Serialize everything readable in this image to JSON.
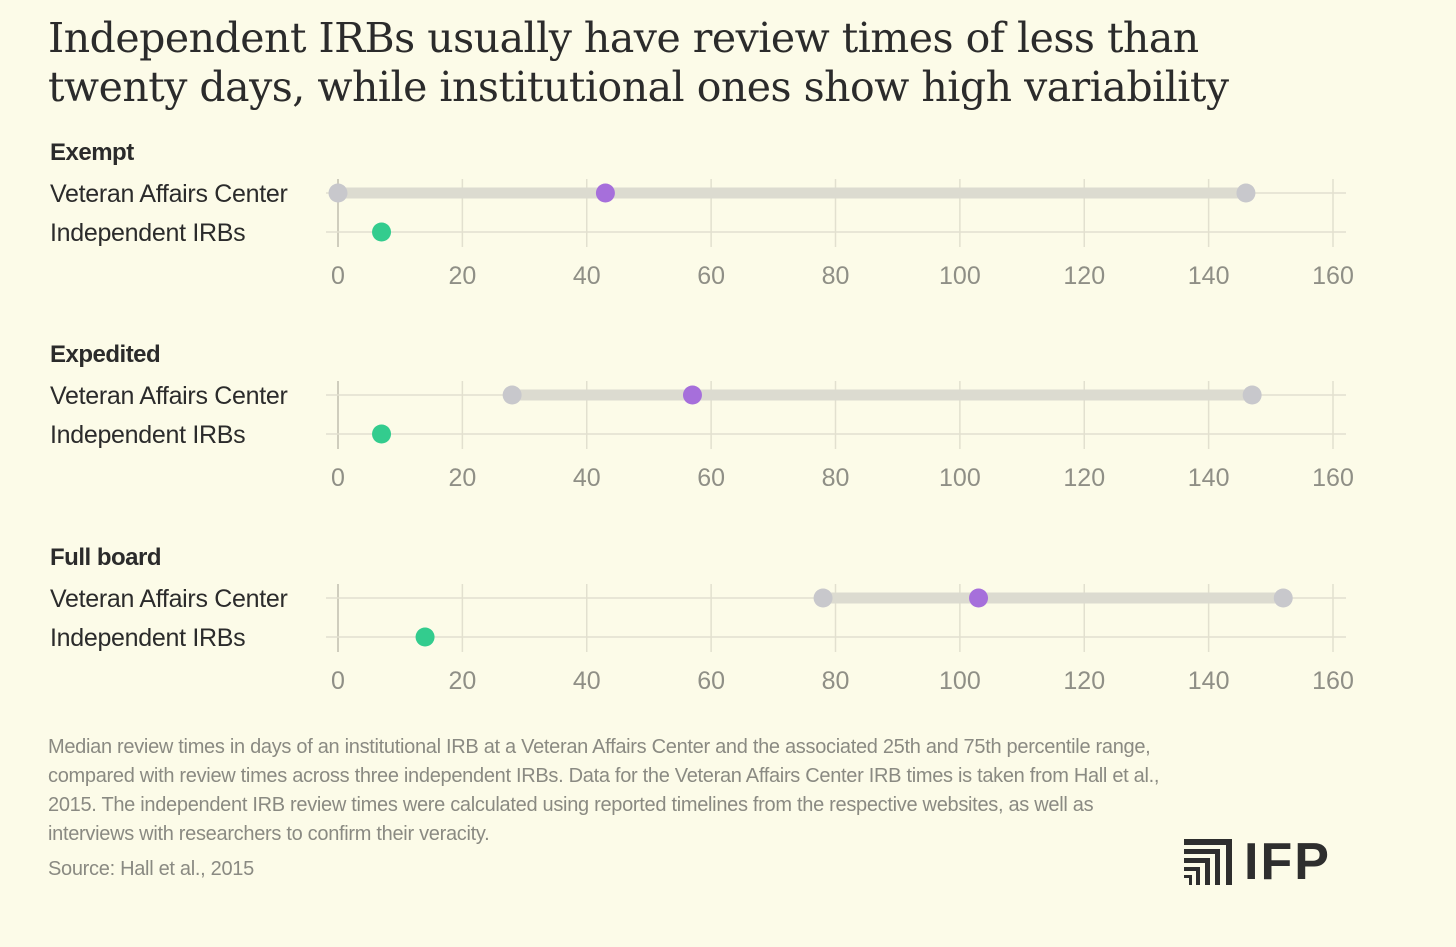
{
  "title": "Independent IRBs usually have review times of less than twenty days, while institutional ones show high variability",
  "caption": "Median review times in days of an institutional IRB at a Veteran Affairs Center and the associated 25th and 75th percentile range, compared with review times across three independent IRBs. Data for the Veteran Affairs Center IRB times is taken from Hall et al., 2015. The independent IRB review times were calculated using reported timelines from the respective websites, as well as interviews with researchers to confirm their veracity.",
  "source": "Source: Hall et al., 2015",
  "logo": {
    "text": "IFP",
    "icon": "ifp-stripes-icon"
  },
  "colors": {
    "background": "#fcfbe8",
    "median": "#a66fdb",
    "range_end": "#c8c8cc",
    "range_bar": "#dcdbd0",
    "independent": "#33cc8e",
    "grid": "#e2e0cf",
    "tick_text": "#8f8f86",
    "label_text": "#2b2b2b"
  },
  "chart_data": [
    {
      "type": "dot-range",
      "title": "Exempt",
      "xlim": [
        0,
        160
      ],
      "xticks": [
        0,
        20,
        40,
        60,
        80,
        100,
        120,
        140,
        160
      ],
      "grid": true,
      "rows": [
        {
          "label": "Veteran Affairs Center",
          "p25": 0,
          "median": 43,
          "p75": 146
        },
        {
          "label": "Independent IRBs",
          "value": 7
        }
      ]
    },
    {
      "type": "dot-range",
      "title": "Expedited",
      "xlim": [
        0,
        160
      ],
      "xticks": [
        0,
        20,
        40,
        60,
        80,
        100,
        120,
        140,
        160
      ],
      "grid": true,
      "rows": [
        {
          "label": "Veteran Affairs Center",
          "p25": 28,
          "median": 57,
          "p75": 147
        },
        {
          "label": "Independent IRBs",
          "value": 7
        }
      ]
    },
    {
      "type": "dot-range",
      "title": "Full board",
      "xlim": [
        0,
        160
      ],
      "xticks": [
        0,
        20,
        40,
        60,
        80,
        100,
        120,
        140,
        160
      ],
      "grid": true,
      "rows": [
        {
          "label": "Veteran Affairs Center",
          "p25": 78,
          "median": 103,
          "p75": 152
        },
        {
          "label": "Independent IRBs",
          "value": 14
        }
      ]
    }
  ]
}
